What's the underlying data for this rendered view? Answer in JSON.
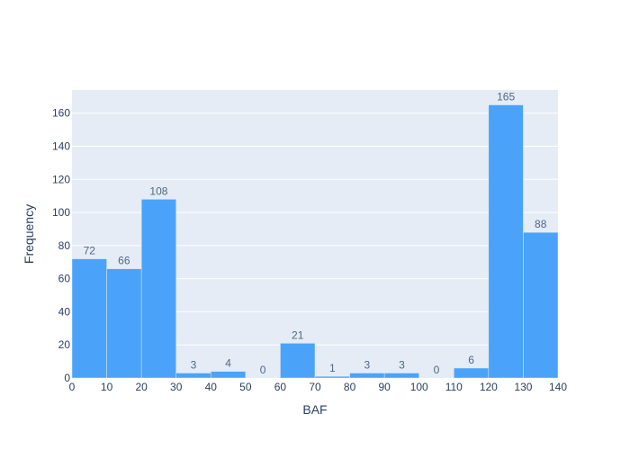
{
  "chart_data": {
    "type": "bar",
    "bin_edges": [
      0,
      10,
      20,
      30,
      40,
      50,
      60,
      70,
      80,
      90,
      100,
      110,
      120,
      130,
      140
    ],
    "values": [
      72,
      66,
      108,
      3,
      4,
      0,
      21,
      1,
      3,
      3,
      0,
      6,
      165,
      88
    ],
    "xlabel": "BAF",
    "ylabel": "Frequency",
    "xlim": [
      0,
      140
    ],
    "ylim": [
      0,
      174
    ],
    "x_ticks": [
      0,
      10,
      20,
      30,
      40,
      50,
      60,
      70,
      80,
      90,
      100,
      110,
      120,
      130,
      140
    ],
    "y_ticks": [
      0,
      20,
      40,
      60,
      80,
      100,
      120,
      140,
      160
    ],
    "grid": true,
    "show_data_labels": true,
    "colors": {
      "bar": "#4aa3f9",
      "plot_bg": "#e5ecf6",
      "grid": "#ffffff",
      "text": "#2a3f5f",
      "label": "#506784"
    }
  }
}
